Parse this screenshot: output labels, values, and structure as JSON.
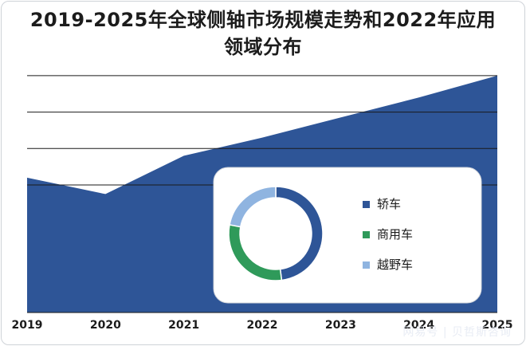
{
  "chart_data": [
    {
      "type": "area",
      "title": "2019-2025年全球侧轴市场规模走势和2022年应用领域分布",
      "x": [
        "2019",
        "2020",
        "2021",
        "2022",
        "2023",
        "2024",
        "2025"
      ],
      "series": [
        {
          "values": [
            74,
            65,
            86,
            96,
            107,
            118,
            130
          ]
        }
      ],
      "ylim": [
        0,
        140
      ],
      "grid": true,
      "colors": {
        "area": "#2e5597",
        "grid": "#1a1a1a"
      }
    },
    {
      "type": "pie",
      "subtype": "donut",
      "labels": [
        "轿车",
        "商用车",
        "越野车"
      ],
      "values": [
        48,
        30,
        22
      ],
      "colors": [
        "#2e5597",
        "#2f9a5a",
        "#8fb4e0"
      ],
      "legend": "right"
    }
  ],
  "watermark": "网易号 | 贝哲斯咨询"
}
